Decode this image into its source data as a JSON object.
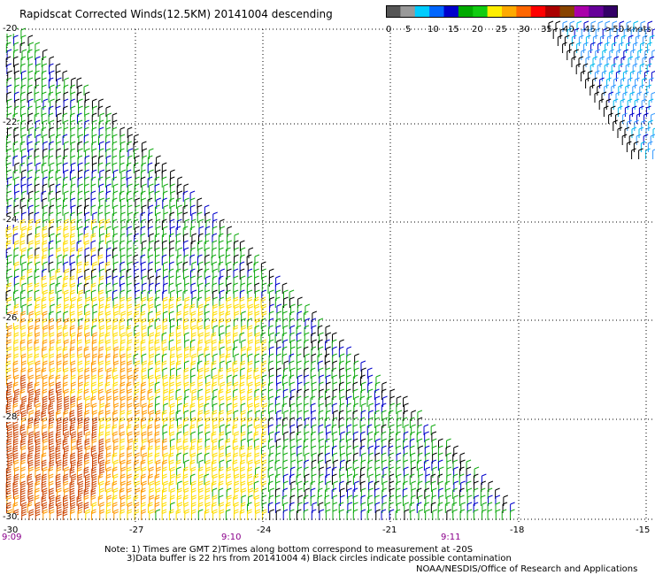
{
  "title": "Rapidscat Corrected Winds(12.5KM) 20141004 descending",
  "colorbar": {
    "segments": [
      "#555555",
      "#999999",
      "#00ccff",
      "#0066ff",
      "#0000cc",
      "#00aa00",
      "#11cc11",
      "#ffee00",
      "#ffaa00",
      "#ff6600",
      "#ff0000",
      "#aa0000",
      "#884400",
      "#aa00aa",
      "#660099",
      "#330066"
    ],
    "labels": [
      "0",
      "5",
      "10",
      "15",
      "20",
      "25",
      "30",
      "35",
      "40",
      "45",
      ">50 knots"
    ]
  },
  "axes": {
    "lat_labels": [
      "-20",
      "-22",
      "-24",
      "-26",
      "-28",
      "-30"
    ],
    "lon_labels": [
      "-30",
      "-27",
      "-24",
      "-21",
      "-18",
      "-15"
    ],
    "time_labels": [
      "9:09",
      "9:10",
      "9:11"
    ]
  },
  "notes": [
    "Note: 1) Times are GMT 2)Times along bottom correspond to measurement at -20S",
    "3)Data buffer is 22 hrs from 20141004 4) Black circles indicate possible contamination"
  ],
  "credit": "NOAA/NESDIS/Office of Research and Applications",
  "wind_colors": {
    "calm": "#000000",
    "light": "#0000cc",
    "moderate": "#11aa11",
    "fresh": "#ffdd00",
    "strong": "#ff9900",
    "gale": "#cc4400"
  }
}
